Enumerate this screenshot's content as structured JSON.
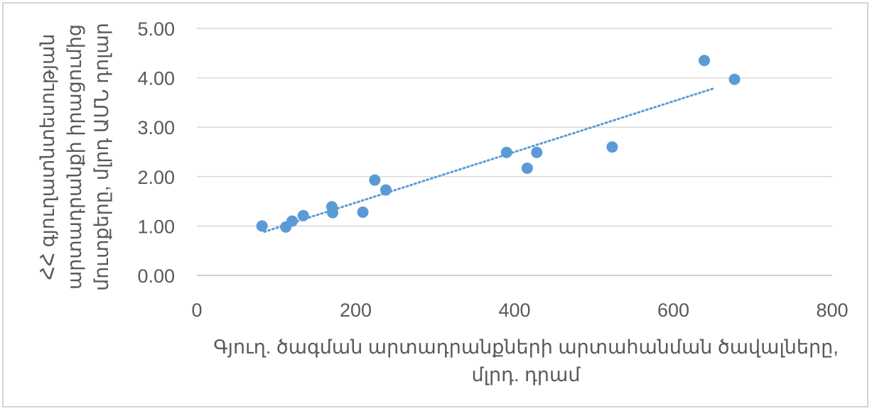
{
  "chart_data": {
    "type": "scatter",
    "x_axis": {
      "title_lines": [
        "Գյուղ. ծագման արտադրանքների արտահանման ծավալները,",
        "մլրդ. դրամ"
      ],
      "range": [
        0,
        800
      ],
      "ticks": [
        0,
        200,
        400,
        600,
        800
      ],
      "tick_labels": [
        "0",
        "200",
        "400",
        "600",
        "800"
      ]
    },
    "y_axis": {
      "title_lines": [
        "ՀՀ գյուղատնտեսության",
        "արտադրանքի իրացումից",
        "մուտքերը, մլրդ ԱՄՆ դոլար"
      ],
      "range": [
        0,
        5
      ],
      "ticks": [
        0,
        1,
        2,
        3,
        4,
        5
      ],
      "tick_labels": [
        "0.00",
        "1.00",
        "2.00",
        "3.00",
        "4.00",
        "5.00"
      ]
    },
    "grid": "horizontal",
    "series": [
      {
        "points": [
          {
            "x": 82,
            "y": 1.0
          },
          {
            "x": 112,
            "y": 0.98
          },
          {
            "x": 120,
            "y": 1.1
          },
          {
            "x": 134,
            "y": 1.21
          },
          {
            "x": 170,
            "y": 1.39
          },
          {
            "x": 171,
            "y": 1.27
          },
          {
            "x": 209,
            "y": 1.28
          },
          {
            "x": 224,
            "y": 1.93
          },
          {
            "x": 238,
            "y": 1.73
          },
          {
            "x": 390,
            "y": 2.49
          },
          {
            "x": 416,
            "y": 2.17
          },
          {
            "x": 428,
            "y": 2.49
          },
          {
            "x": 523,
            "y": 2.6
          },
          {
            "x": 639,
            "y": 4.35
          },
          {
            "x": 677,
            "y": 3.97
          }
        ]
      }
    ],
    "trendline": {
      "type": "linear",
      "x_start": 85,
      "x_end": 650
    },
    "colors": {
      "marker": "#5b9bd5",
      "grid": "#d9d9d9",
      "axis": "#bfbfbf",
      "text": "#595959",
      "border": "#d4d4d4"
    }
  }
}
